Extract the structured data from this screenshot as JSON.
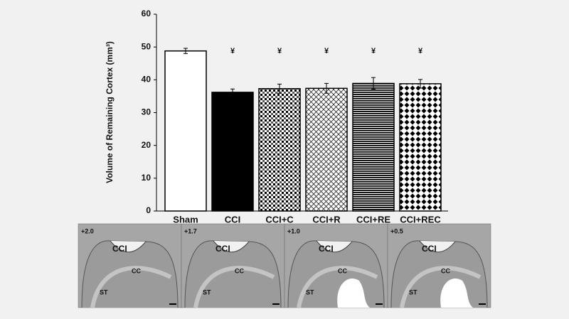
{
  "chart_data": {
    "type": "bar",
    "y_label": "Volume of Remaining Cortex (mm³)",
    "categories": [
      "Sham",
      "CCI",
      "CCI+C",
      "CCI+R",
      "CCI+RE",
      "CCI+REC"
    ],
    "values": [
      48.8,
      36.2,
      37.3,
      37.4,
      38.9,
      38.8
    ],
    "errors": [
      0.8,
      1.0,
      1.4,
      1.5,
      1.8,
      1.3
    ],
    "patterns": [
      "white",
      "black",
      "grid",
      "crosshatch",
      "hlines",
      "diamonds"
    ],
    "significance_labels": [
      null,
      "¥",
      "¥",
      "¥",
      "¥",
      "¥"
    ],
    "ylim": [
      0,
      60
    ],
    "yticks": [
      0,
      10,
      20,
      30,
      40,
      50,
      60
    ],
    "grid": false
  },
  "panels": [
    {
      "level": "+2.0",
      "labels": [
        "CCI",
        "CC",
        "ST"
      ]
    },
    {
      "level": "+1.7",
      "labels": [
        "CCI",
        "CC",
        "ST"
      ]
    },
    {
      "level": "+1.0",
      "labels": [
        "CCI",
        "CC",
        "ST"
      ]
    },
    {
      "level": "+0.5",
      "labels": [
        "CCI",
        "CC",
        "ST"
      ]
    }
  ]
}
